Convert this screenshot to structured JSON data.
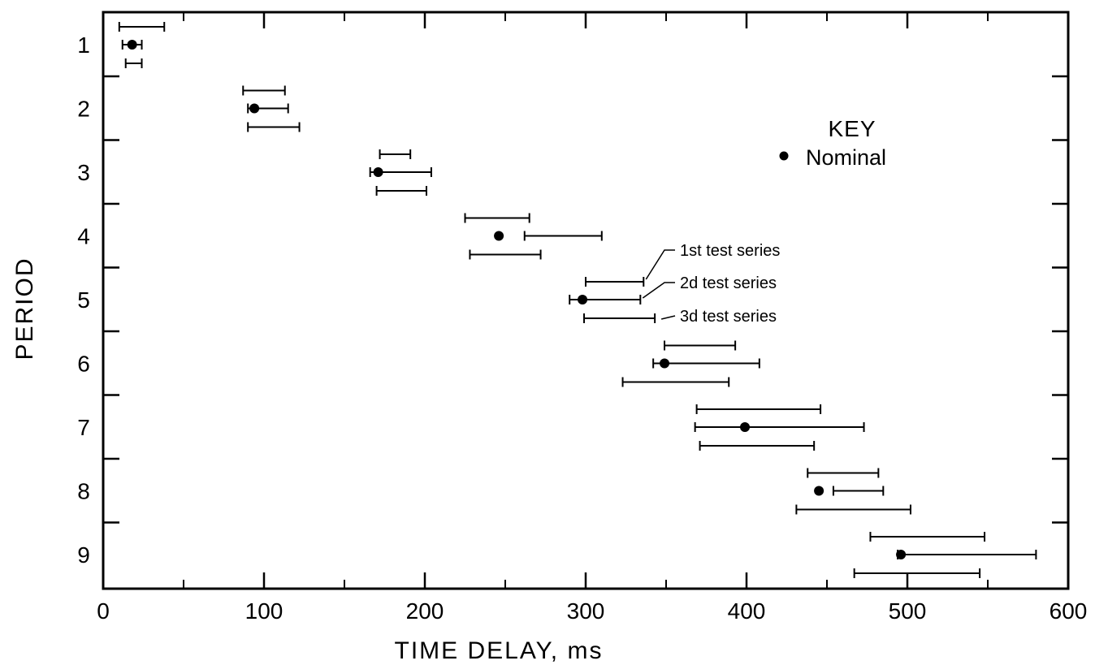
{
  "chart_data": {
    "type": "scatter",
    "xlabel": "TIME DELAY, ms",
    "ylabel": "PERIOD",
    "xlim": [
      0,
      600
    ],
    "ylim": [
      1,
      9
    ],
    "x_ticks": [
      0,
      100,
      200,
      300,
      400,
      500,
      600
    ],
    "y_ticks": [
      1,
      2,
      3,
      4,
      5,
      6,
      7,
      8,
      9
    ],
    "grid": false,
    "legend": {
      "placement": "top-right",
      "title": "KEY",
      "entries": [
        {
          "marker": "filled-circle",
          "label": "Nominal"
        }
      ]
    },
    "annotations": [
      "1st test series",
      "2d test series",
      "3d test series"
    ],
    "nominal": [
      {
        "period": 1,
        "x": 18
      },
      {
        "period": 2,
        "x": 94
      },
      {
        "period": 3,
        "x": 171
      },
      {
        "period": 4,
        "x": 246
      },
      {
        "period": 5,
        "x": 298
      },
      {
        "period": 6,
        "x": 349
      },
      {
        "period": 7,
        "x": 399
      },
      {
        "period": 8,
        "x": 445
      },
      {
        "period": 9,
        "x": 496
      }
    ],
    "series": [
      {
        "name": "1st test series",
        "ranges": [
          {
            "period": 1,
            "min": 10,
            "max": 38
          },
          {
            "period": 2,
            "min": 87,
            "max": 113
          },
          {
            "period": 3,
            "min": 172,
            "max": 191
          },
          {
            "period": 4,
            "min": 225,
            "max": 265
          },
          {
            "period": 5,
            "min": 300,
            "max": 336
          },
          {
            "period": 6,
            "min": 349,
            "max": 393
          },
          {
            "period": 7,
            "min": 369,
            "max": 446
          },
          {
            "period": 8,
            "min": 438,
            "max": 482
          },
          {
            "period": 9,
            "min": 477,
            "max": 548
          }
        ]
      },
      {
        "name": "2d test series",
        "ranges": [
          {
            "period": 1,
            "min": 12,
            "max": 24
          },
          {
            "period": 2,
            "min": 90,
            "max": 115
          },
          {
            "period": 3,
            "min": 166,
            "max": 204
          },
          {
            "period": 4,
            "min": 262,
            "max": 310
          },
          {
            "period": 5,
            "min": 290,
            "max": 334
          },
          {
            "period": 6,
            "min": 342,
            "max": 408
          },
          {
            "period": 7,
            "min": 368,
            "max": 473
          },
          {
            "period": 8,
            "min": 454,
            "max": 485
          },
          {
            "period": 9,
            "min": 494,
            "max": 580
          }
        ]
      },
      {
        "name": "3d test series",
        "ranges": [
          {
            "period": 1,
            "min": 14,
            "max": 24
          },
          {
            "period": 2,
            "min": 90,
            "max": 122
          },
          {
            "period": 3,
            "min": 170,
            "max": 201
          },
          {
            "period": 4,
            "min": 228,
            "max": 272
          },
          {
            "period": 5,
            "min": 299,
            "max": 343
          },
          {
            "period": 6,
            "min": 323,
            "max": 389
          },
          {
            "period": 7,
            "min": 371,
            "max": 442
          },
          {
            "period": 8,
            "min": 431,
            "max": 502
          },
          {
            "period": 9,
            "min": 467,
            "max": 545
          }
        ]
      }
    ]
  }
}
